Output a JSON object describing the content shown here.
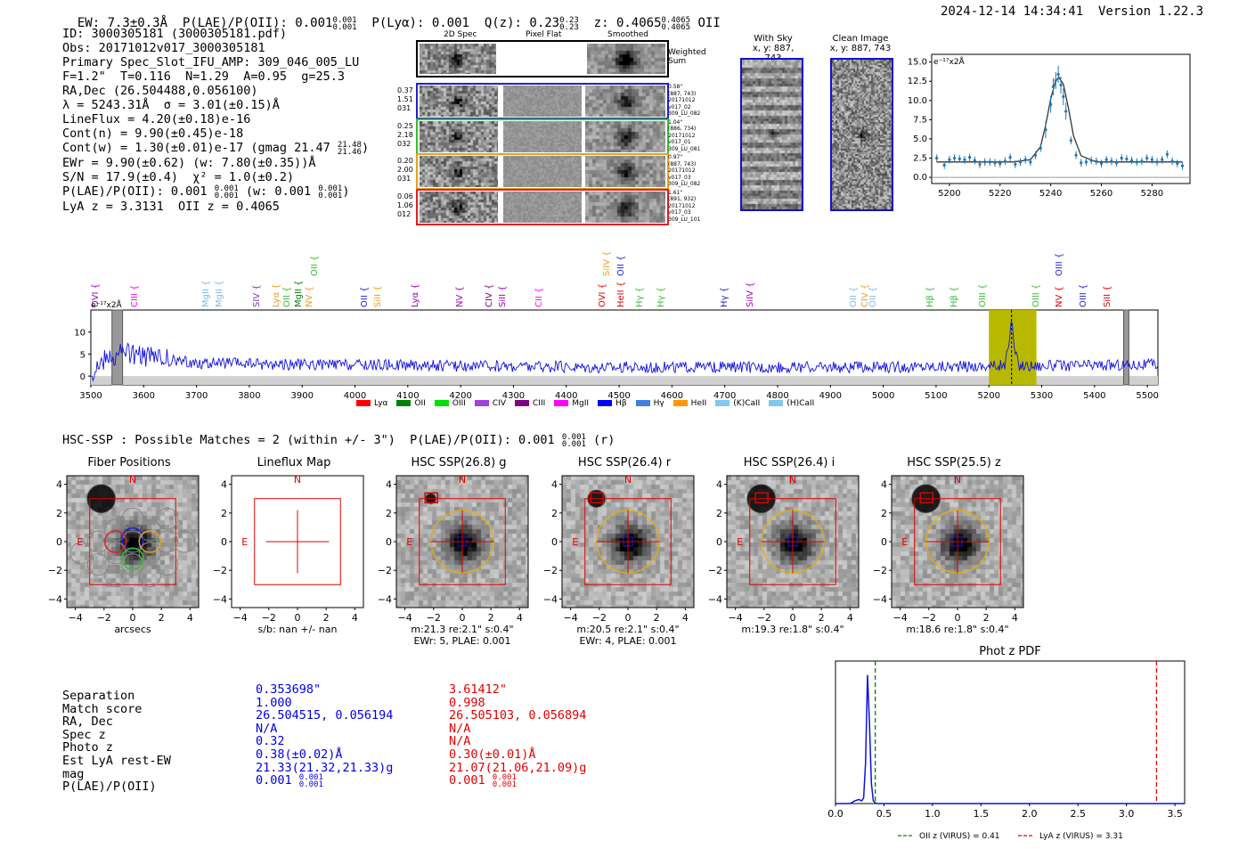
{
  "header": {
    "line": "EW: 7.3±0.3Å  P(LAE)/P(OII): 0.001",
    "fr1_num": "0.001",
    "fr1_den": "0.001",
    "rest": "  P(Lyα): 0.001  Q(z): 0.23",
    "fr2_num": "0.23",
    "fr2_den": "0.23",
    "z_text": "  z: 0.4065",
    "fr3_num": "0.4065",
    "fr3_den": "0.4065",
    "line_type": " OII",
    "timestamp": "2024-12-14 14:34:41  Version 1.22.3"
  },
  "info": {
    "id": "ID: 3000305181 (3000305181.pdf)",
    "obs": "Obs: 20171012v017_3000305181",
    "primary": "Primary Spec_Slot_IFU_AMP: 309_046_005_LU",
    "fit": "F=1.2\"  T=0.116  N=1.29  A=0.95  g=25.3",
    "radec": "RA,Dec (26.504488,0.056100)",
    "lambda": "λ = 5243.31Å  σ = 3.01(±0.15)Å",
    "lineflux": "LineFlux = 4.20(±0.18)e-16",
    "cont_n": "Cont(n) = 9.90(±0.45)e-18",
    "cont_w": "Cont(w) = 1.30(±0.01)e-17 (gmag 21.47",
    "cont_w_num": "21.48",
    "cont_w_den": "21.46",
    "ewr": "EWr = 9.90(±0.62) (w: 7.80(±0.35))Å",
    "sn": "S/N = 17.9(±0.4)  χ² = 1.0(±0.2)",
    "plae": "P(LAE)/P(OII): 0.001",
    "plae_num": "0.001",
    "plae_den": "0.001",
    "plae_w": " (w: 0.001",
    "plae_w_num": "0.001",
    "plae_w_den": "0.001",
    "lya_z": "LyA z = 3.3131  OII z = 0.4065"
  },
  "cutouts": {
    "col_2d": "2D Spec",
    "col_flat": "Pixel Flat",
    "col_smooth": "Smoothed",
    "weighted": "Weighted Sum",
    "rows": [
      {
        "left": [
          "0.37",
          "1.51",
          "031"
        ],
        "right": [
          "0.58\"",
          "(887, 743)",
          "20171012",
          "v017_02",
          "309_LU_082"
        ],
        "color": "#2020d0"
      },
      {
        "left": [
          "0.25",
          "2.18",
          "032"
        ],
        "right": [
          "1.04\"",
          "(886, 734)",
          "20171012",
          "v017_01",
          "309_LU_081"
        ],
        "color": "#30c030"
      },
      {
        "left": [
          "0.20",
          "2.00",
          "031"
        ],
        "right": [
          "0.97\"",
          "(887, 743)",
          "20171012",
          "v017_03",
          "309_LU_082"
        ],
        "color": "#e8a020"
      },
      {
        "left": [
          "0.06",
          "1.06",
          "012"
        ],
        "right": [
          "1.61\"",
          "(891, 932)",
          "20171012",
          "v017_03",
          "309_LU_101"
        ],
        "color": "#e02020"
      }
    ],
    "with_sky_title": "With Sky",
    "with_sky_xy": "x, y: 887, 743",
    "clean_title": "Clean Image",
    "clean_xy": "x, y: 887, 743"
  },
  "zoom_chart": {
    "unit": "e⁻¹⁷x2Å",
    "xticks": [
      "5200",
      "5220",
      "5240",
      "5260",
      "5280"
    ],
    "yticks": [
      "15.0",
      "12.5",
      "10.0",
      "7.5",
      "5.0",
      "2.5",
      "0.0"
    ]
  },
  "chart_data": [
    {
      "type": "scatter",
      "title": "",
      "xlabel": "",
      "ylabel": "e⁻¹⁷x2Å",
      "xlim": [
        5193,
        5295
      ],
      "ylim": [
        -0.8,
        16
      ],
      "series": [
        {
          "name": "data",
          "x": [
            5195,
            5198,
            5200,
            5202,
            5204,
            5206,
            5208,
            5210,
            5212,
            5214,
            5216,
            5218,
            5220,
            5222,
            5224,
            5226,
            5228,
            5230,
            5232,
            5234,
            5236,
            5238,
            5240,
            5241,
            5242,
            5243,
            5244,
            5245,
            5246,
            5248,
            5250,
            5252,
            5254,
            5256,
            5258,
            5260,
            5262,
            5264,
            5266,
            5268,
            5270,
            5272,
            5274,
            5276,
            5278,
            5280,
            5282,
            5284,
            5286,
            5288,
            5290,
            5292
          ],
          "y": [
            2.5,
            1.6,
            2.3,
            2.5,
            2.4,
            2.3,
            2.6,
            2.2,
            1.7,
            2.0,
            2.0,
            1.9,
            1.8,
            2.1,
            2.6,
            1.7,
            2.0,
            2.3,
            2.0,
            2.9,
            3.8,
            6.2,
            9.5,
            11.8,
            12.6,
            13.4,
            12.0,
            10.5,
            8.6,
            4.8,
            2.9,
            1.9,
            2.0,
            2.2,
            2.1,
            1.8,
            2.3,
            2.1,
            1.9,
            2.5,
            2.4,
            2.2,
            2.0,
            2.1,
            2.5,
            2.3,
            2.0,
            2.3,
            3.0,
            2.1,
            1.8,
            1.5
          ]
        },
        {
          "name": "fit",
          "x": [
            5195,
            5225,
            5232,
            5236,
            5238,
            5240,
            5242,
            5243.3,
            5245,
            5247,
            5249,
            5252,
            5258,
            5292
          ],
          "y": [
            2.0,
            2.0,
            2.3,
            4.0,
            6.8,
            10.2,
            12.6,
            13.0,
            12.1,
            9.0,
            5.4,
            2.8,
            2.0,
            2.0
          ]
        }
      ]
    },
    {
      "type": "line",
      "title": "",
      "xlabel": "",
      "ylabel": "e⁻¹⁷x2Å",
      "xlim": [
        3500,
        5520
      ],
      "ylim": [
        -2,
        15
      ],
      "xticks": [
        "3500",
        "3600",
        "3700",
        "3800",
        "3900",
        "4000",
        "4100",
        "4200",
        "4300",
        "4400",
        "4500",
        "4600",
        "4700",
        "4800",
        "4900",
        "5000",
        "5100",
        "5200",
        "5300",
        "5400",
        "5500"
      ],
      "yticks": [
        "10",
        "5",
        "0"
      ],
      "highlight": [
        5200,
        5290
      ],
      "series": [
        {
          "name": "spectrum",
          "x": [
            3500,
            3520,
            3535,
            3545,
            3560,
            3580,
            3600,
            3650,
            3700,
            3800,
            3900,
            4000,
            4100,
            4200,
            4300,
            4400,
            4500,
            4600,
            4700,
            4800,
            4900,
            5000,
            5100,
            5200,
            5230,
            5238,
            5243,
            5248,
            5256,
            5290,
            5400,
            5520
          ],
          "y": [
            1.0,
            3.0,
            5.5,
            4.0,
            6.0,
            5.0,
            4.5,
            3.5,
            3.0,
            2.8,
            2.6,
            2.5,
            2.5,
            2.3,
            2.2,
            2.1,
            2.0,
            2.0,
            2.0,
            2.0,
            2.0,
            2.0,
            2.2,
            2.2,
            2.4,
            7.0,
            13.5,
            6.5,
            2.4,
            2.3,
            2.5,
            2.6
          ]
        }
      ]
    },
    {
      "type": "line",
      "title": "Phot z PDF",
      "xlabel": "",
      "ylabel": "",
      "xlim": [
        0.0,
        3.6
      ],
      "ylim": [
        0,
        1
      ],
      "xticks": [
        "0.0",
        "0.5",
        "1.0",
        "1.5",
        "2.0",
        "2.5",
        "3.0",
        "3.5"
      ],
      "series": [
        {
          "name": "pdf",
          "x": [
            0.0,
            0.15,
            0.2,
            0.24,
            0.27,
            0.29,
            0.31,
            0.33,
            0.35,
            0.37,
            0.39,
            0.42,
            0.5,
            1.0,
            2.0,
            3.6
          ],
          "y": [
            0.0,
            0.0,
            0.02,
            0.03,
            0.02,
            0.04,
            0.3,
            0.95,
            0.6,
            0.15,
            0.02,
            0.0,
            0.0,
            0.0,
            0.0,
            0.0
          ]
        }
      ],
      "vlines": [
        {
          "x": 0.41,
          "label": "OII z (VIRUS) = 0.41",
          "color": "#008000"
        },
        {
          "x": 3.31,
          "label": "LyA z (VIRUS) = 3.31",
          "color": "#e00000"
        }
      ]
    }
  ],
  "line_ids": [
    {
      "name": "OVI",
      "x": 3510,
      "color": "#a000c0",
      "row": 0
    },
    {
      "name": "CIII",
      "x": 3585,
      "color": "#ff00ff",
      "row": 0
    },
    {
      "name": "MgII",
      "x": 3720,
      "color": "#80b8e8",
      "row": 0
    },
    {
      "name": "MgII",
      "x": 3745,
      "color": "#80b8e8",
      "row": 0
    },
    {
      "name": "SIV",
      "x": 3815,
      "color": "#8030c0",
      "row": 0
    },
    {
      "name": "Lyα",
      "x": 3852,
      "color": "#e8a020",
      "row": 0
    },
    {
      "name": "OII",
      "x": 3872,
      "color": "#30c030",
      "row": 0
    },
    {
      "name": "MgII",
      "x": 3895,
      "color": "#008000",
      "row": 0
    },
    {
      "name": "NV",
      "x": 3915,
      "color": "#e8a020",
      "row": 0
    },
    {
      "name": "OII",
      "x": 3925,
      "color": "#30c030",
      "row": 1
    },
    {
      "name": "OII",
      "x": 4020,
      "color": "#2020d0",
      "row": 0
    },
    {
      "name": "SiII",
      "x": 4045,
      "color": "#e8a020",
      "row": 0
    },
    {
      "name": "Lyα",
      "x": 4115,
      "color": "#a000c0",
      "row": 0
    },
    {
      "name": "NV",
      "x": 4200,
      "color": "#a000c0",
      "row": 0
    },
    {
      "name": "CIV",
      "x": 4255,
      "color": "#800080",
      "row": 0
    },
    {
      "name": "SiII",
      "x": 4280,
      "color": "#a000c0",
      "row": 0
    },
    {
      "name": "CII",
      "x": 4350,
      "color": "#ff00ff",
      "row": 0
    },
    {
      "name": "OVI",
      "x": 4470,
      "color": "#e00000",
      "row": 0
    },
    {
      "name": "SiIV",
      "x": 4478,
      "color": "#e8a020",
      "row": 1
    },
    {
      "name": "HeII",
      "x": 4505,
      "color": "#e00000",
      "row": 0
    },
    {
      "name": "OII",
      "x": 4505,
      "color": "#2020d0",
      "row": 1
    },
    {
      "name": "Hγ",
      "x": 4540,
      "color": "#30c030",
      "row": 0
    },
    {
      "name": "Hγ",
      "x": 4580,
      "color": "#30c030",
      "row": 0
    },
    {
      "name": "Hγ",
      "x": 4700,
      "color": "#2020d0",
      "row": 0
    },
    {
      "name": "SiIV",
      "x": 4750,
      "color": "#a000c0",
      "row": 0
    },
    {
      "name": "OII",
      "x": 4945,
      "color": "#80b8e8",
      "row": 0
    },
    {
      "name": "CIV",
      "x": 4967,
      "color": "#e8a020",
      "row": 0
    },
    {
      "name": "OII",
      "x": 4982,
      "color": "#80b8e8",
      "row": 0
    },
    {
      "name": "Hβ",
      "x": 5090,
      "color": "#30c030",
      "row": 0
    },
    {
      "name": "Hβ",
      "x": 5135,
      "color": "#30c030",
      "row": 0
    },
    {
      "name": "OIII",
      "x": 5190,
      "color": "#30c030",
      "row": 0
    },
    {
      "name": "OIII",
      "x": 5290,
      "color": "#30c030",
      "row": 0
    },
    {
      "name": "NV",
      "x": 5335,
      "color": "#e00000",
      "row": 0
    },
    {
      "name": "OIII",
      "x": 5335,
      "color": "#2020d0",
      "row": 1
    },
    {
      "name": "OIII",
      "x": 5380,
      "color": "#2020d0",
      "row": 0
    },
    {
      "name": "SiII",
      "x": 5425,
      "color": "#e00000",
      "row": 0
    }
  ],
  "legend": [
    {
      "name": "Lyα",
      "color": "#ff0000"
    },
    {
      "name": "OII",
      "color": "#008000"
    },
    {
      "name": "OIII",
      "color": "#00e000"
    },
    {
      "name": "CIV",
      "color": "#a040e0"
    },
    {
      "name": "CIII",
      "color": "#800080"
    },
    {
      "name": "MgII",
      "color": "#ff00ff"
    },
    {
      "name": "Hβ",
      "color": "#0000ff"
    },
    {
      "name": "Hγ",
      "color": "#4080e0"
    },
    {
      "name": "HeII",
      "color": "#ff9900"
    },
    {
      "name": "(K)CaII",
      "color": "#80c8f0"
    },
    {
      "name": "(H)CaII",
      "color": "#80c8f0"
    }
  ],
  "hsc": {
    "heading": "HSC-SSP : Possible Matches = 2 (within +/- 3\")  P(LAE)/P(OII): 0.001",
    "heading_num": "0.001",
    "heading_den": "0.001",
    "heading_tail": " (r)",
    "panels": [
      {
        "title": "Fiber Positions",
        "xlabel": "arcsecs",
        "sub": ""
      },
      {
        "title": "Lineflux Map",
        "xlabel": "s/b: nan +/- nan",
        "sub": ""
      },
      {
        "title": "HSC SSP(26.8) g",
        "xlabel": "m:21.3  re:2.1\"  s:0.4\"",
        "sub": "EWr: 5, PLAE: 0.001"
      },
      {
        "title": "HSC SSP(26.4) r",
        "xlabel": "m:20.5  re:2.1\"  s:0.4\"",
        "sub": "EWr: 4, PLAE: 0.001"
      },
      {
        "title": "HSC SSP(26.4) i",
        "xlabel": "m:19.3  re:1.8\"  s:0.4\"",
        "sub": ""
      },
      {
        "title": "HSC SSP(25.5) z",
        "xlabel": "m:18.6  re:1.8\"  s:0.4\"",
        "sub": ""
      }
    ],
    "ticks": [
      "−4",
      "−2",
      "0",
      "2",
      "4"
    ],
    "yticks": [
      "4",
      "2",
      "0",
      "−2",
      "−4"
    ],
    "north": "N",
    "east": "E"
  },
  "compare": {
    "labels": [
      "Separation",
      "Match score",
      "RA, Dec",
      "Spec z",
      "Photo z",
      "Est LyA rest-EW",
      "mag",
      "P(LAE)/P(OII)"
    ],
    "blue": [
      "0.353698\"",
      "1.000",
      "26.504515, 0.056194",
      "N/A",
      "0.32",
      "0.38(±0.02)Å",
      "21.33(21.32,21.33)g",
      "0.001"
    ],
    "blue_num": "0.001",
    "blue_den": "0.001",
    "red": [
      "3.61412\"",
      "0.998",
      "26.505103, 0.056894",
      "N/A",
      "N/A",
      "0.30(±0.01)Å",
      "21.07(21.06,21.09)g",
      "0.001"
    ],
    "red_num": "0.001",
    "red_den": "0.001"
  }
}
